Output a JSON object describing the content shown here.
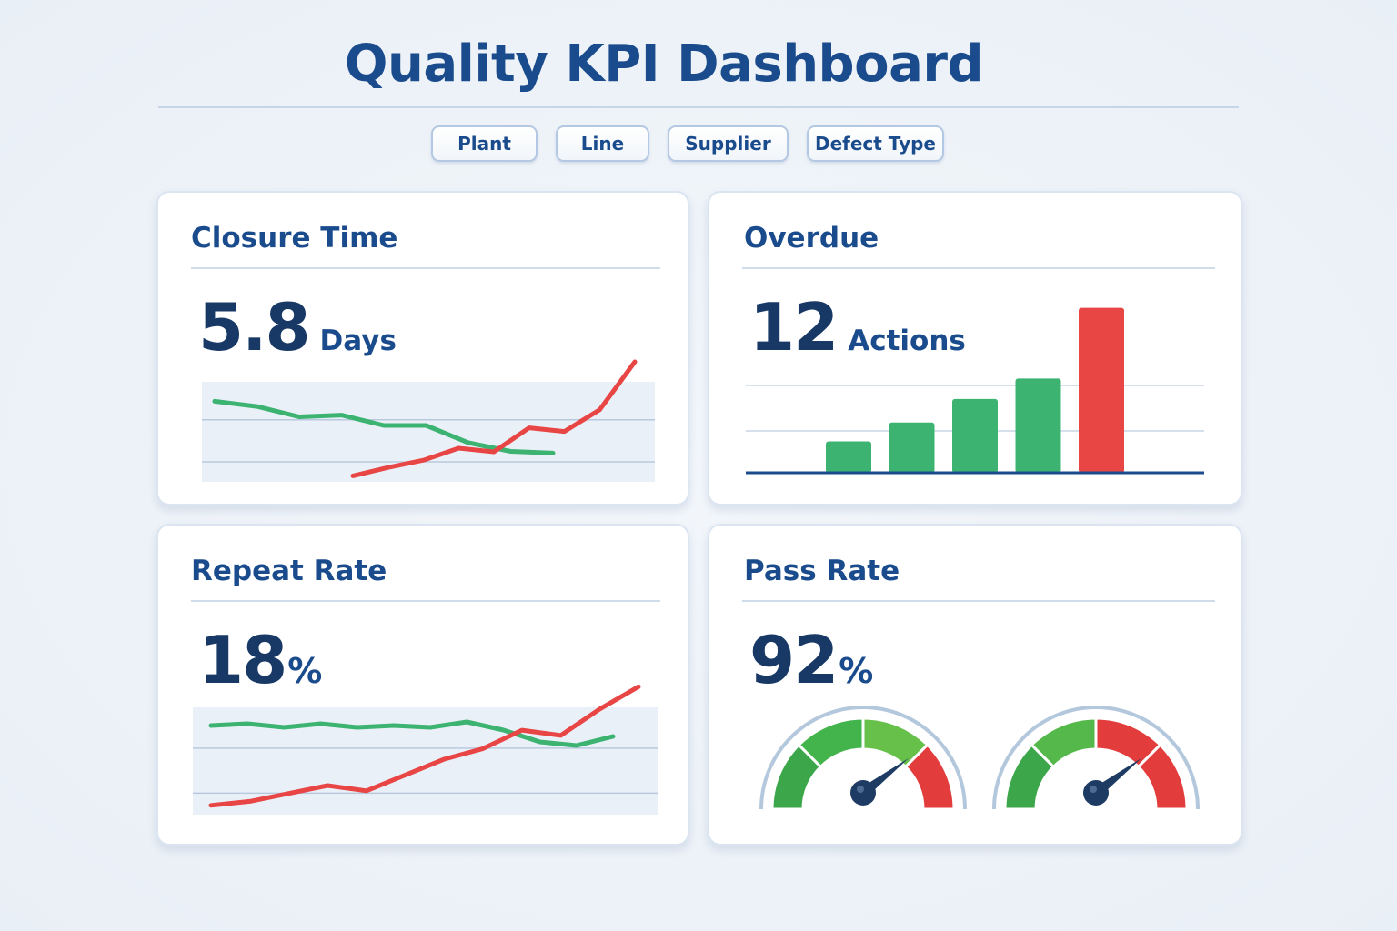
{
  "header": {
    "title": "Quality KPI Dashboard"
  },
  "filters": [
    {
      "label": "Plant"
    },
    {
      "label": "Line"
    },
    {
      "label": "Supplier"
    },
    {
      "label": "Defect Type"
    }
  ],
  "colors": {
    "primary": "#1a4b8c",
    "good": "#3cb371",
    "bad": "#e84545",
    "panel_band": "#eaf0f8"
  },
  "cards": {
    "closure_time": {
      "title": "Closure Time",
      "value": "5.8",
      "unit": "Days"
    },
    "overdue": {
      "title": "Overdue",
      "value": "12",
      "unit": "Actions"
    },
    "repeat_rate": {
      "title": "Repeat Rate",
      "value": "18",
      "unit": "%"
    },
    "pass_rate": {
      "title": "Pass Rate",
      "value": "92",
      "unit": "%"
    }
  },
  "chart_data": [
    {
      "type": "line",
      "series": [
        {
          "color": "#3cb371",
          "values": [
            88,
            82,
            70,
            72,
            60,
            60,
            40,
            30,
            28
          ]
        },
        {
          "color": "#e84545",
          "values": [
            5,
            12,
            18,
            28,
            25,
            45,
            42,
            60,
            100
          ]
        }
      ],
      "ylim": [
        0,
        100
      ]
    },
    {
      "type": "bar",
      "values": [
        2,
        3.2,
        4.7,
        6,
        10.5
      ],
      "colors": [
        "#3cb371",
        "#3cb371",
        "#3cb371",
        "#3cb371",
        "#e84545"
      ],
      "ylim": [
        0,
        11
      ]
    },
    {
      "type": "line",
      "series": [
        {
          "color": "#3cb371",
          "values": [
            60,
            62,
            58,
            62,
            58,
            60,
            58,
            64,
            55,
            42,
            38,
            48
          ]
        },
        {
          "color": "#e84545",
          "values": [
            5,
            8,
            14,
            20,
            16,
            28,
            40,
            48,
            62,
            58,
            78,
            95
          ]
        }
      ],
      "ylim": [
        0,
        100
      ]
    }
  ],
  "gauges": [
    {
      "needle_fraction": 0.78
    },
    {
      "needle_fraction": 0.78
    }
  ]
}
